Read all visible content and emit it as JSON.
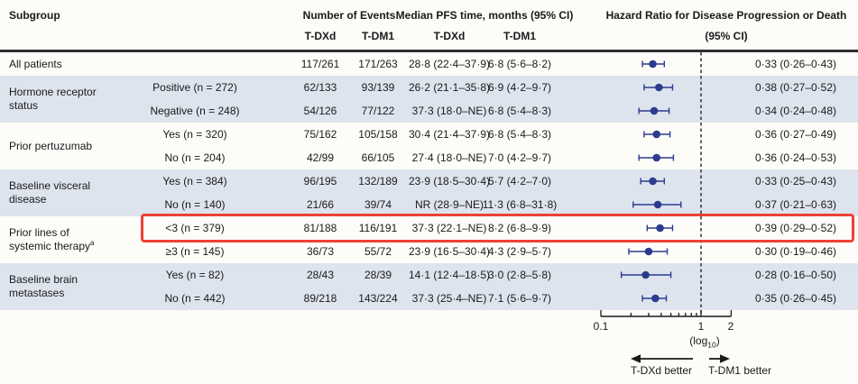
{
  "header": {
    "col_subgroup": "Subgroup",
    "col_events": "Number of Events",
    "col_median": "Median PFS time, months (95% CI)",
    "col_hr_line1": "Hazard Ratio for Disease Progression or Death",
    "col_hr_line2": "(95% CI)",
    "sub_tdxd_events": "T-DXd",
    "sub_tdm1_events": "T-DM1",
    "sub_tdxd_median": "T-DXd",
    "sub_tdm1_median": "T-DM1"
  },
  "groups": [
    {
      "lines": [
        "All patients"
      ],
      "sup": "",
      "start_row": 0,
      "span": 1
    },
    {
      "lines": [
        "Hormone receptor",
        "status"
      ],
      "sup": "",
      "start_row": 1,
      "span": 2
    },
    {
      "lines": [
        "Prior pertuzumab"
      ],
      "sup": "",
      "start_row": 3,
      "span": 2
    },
    {
      "lines": [
        "Baseline visceral",
        "disease"
      ],
      "sup": "",
      "start_row": 5,
      "span": 2
    },
    {
      "lines": [
        "Prior lines of",
        "systemic therapy"
      ],
      "sup": "a",
      "start_row": 7,
      "span": 2
    },
    {
      "lines": [
        "Baseline brain",
        "metastases"
      ],
      "sup": "",
      "start_row": 9,
      "span": 2
    }
  ],
  "rows": [
    {
      "sublabel": "",
      "ev_tdxd": "117/261",
      "ev_tdm1": "171/263",
      "med_tdxd": "28·8 (22·4–37·9)",
      "med_tdm1": "6·8 (5·6–8·2)",
      "hr_text": "0·33 (0·26–0·43)",
      "shaded": false,
      "highlight": false
    },
    {
      "sublabel": "Positive (n = 272)",
      "ev_tdxd": "62/133",
      "ev_tdm1": "93/139",
      "med_tdxd": "26·2 (21·1–35·8)",
      "med_tdm1": "6·9 (4·2–9·7)",
      "hr_text": "0·38 (0·27–0·52)",
      "shaded": true,
      "highlight": false
    },
    {
      "sublabel": "Negative (n = 248)",
      "ev_tdxd": "54/126",
      "ev_tdm1": "77/122",
      "med_tdxd": "37·3 (18·0–NE)",
      "med_tdm1": "6·8 (5·4–8·3)",
      "hr_text": "0·34 (0·24–0·48)",
      "shaded": true,
      "highlight": false
    },
    {
      "sublabel": "Yes (n = 320)",
      "ev_tdxd": "75/162",
      "ev_tdm1": "105/158",
      "med_tdxd": "30·4 (21·4–37·9)",
      "med_tdm1": "6·8 (5·4–8·3)",
      "hr_text": "0·36 (0·27–0·49)",
      "shaded": false,
      "highlight": false
    },
    {
      "sublabel": "No (n = 204)",
      "ev_tdxd": "42/99",
      "ev_tdm1": "66/105",
      "med_tdxd": "27·4 (18·0–NE)",
      "med_tdm1": "7·0 (4·2–9·7)",
      "hr_text": "0·36 (0·24–0·53)",
      "shaded": false,
      "highlight": false
    },
    {
      "sublabel": "Yes (n = 384)",
      "ev_tdxd": "96/195",
      "ev_tdm1": "132/189",
      "med_tdxd": "23·9 (18·5–30·4)",
      "med_tdm1": "5·7 (4·2–7·0)",
      "hr_text": "0·33 (0·25–0·43)",
      "shaded": true,
      "highlight": false
    },
    {
      "sublabel": "No (n = 140)",
      "ev_tdxd": "21/66",
      "ev_tdm1": "39/74",
      "med_tdxd": "NR (28·9–NE)",
      "med_tdm1": "11·3 (6·8–31·8)",
      "hr_text": "0·37 (0·21–0·63)",
      "shaded": true,
      "highlight": false
    },
    {
      "sublabel": "<3 (n = 379)",
      "ev_tdxd": "81/188",
      "ev_tdm1": "116/191",
      "med_tdxd": "37·3 (22·1–NE)",
      "med_tdm1": "8·2 (6·8–9·9)",
      "hr_text": "0·39 (0·29–0·52)",
      "shaded": false,
      "highlight": true
    },
    {
      "sublabel": "≥3 (n = 145)",
      "ev_tdxd": "36/73",
      "ev_tdm1": "55/72",
      "med_tdxd": "23·9 (16·5–30·4)",
      "med_tdm1": "4·3 (2·9–5·7)",
      "hr_text": "0·30 (0·19–0·46)",
      "shaded": false,
      "highlight": false
    },
    {
      "sublabel": "Yes (n = 82)",
      "ev_tdxd": "28/43",
      "ev_tdm1": "28/39",
      "med_tdxd": "14·1 (12·4–18·5)",
      "med_tdm1": "3·0 (2·8–5·8)",
      "hr_text": "0·28 (0·16–0·50)",
      "shaded": true,
      "highlight": false
    },
    {
      "sublabel": "No (n = 442)",
      "ev_tdxd": "89/218",
      "ev_tdm1": "143/224",
      "med_tdxd": "37·3 (25·4–NE)",
      "med_tdm1": "7·1 (5·6–9·7)",
      "hr_text": "0·35 (0·26–0·45)",
      "shaded": true,
      "highlight": false
    }
  ],
  "chart_data": {
    "type": "forest",
    "x_scale": "log10",
    "x_range": [
      0.1,
      2
    ],
    "reference_line": 1.0,
    "axis_ticks": [
      0.1,
      0.2,
      0.3,
      0.4,
      0.5,
      0.6,
      0.7,
      0.8,
      0.9,
      1,
      2
    ],
    "axis_tick_labels": [
      "0.1",
      "1",
      "2"
    ],
    "axis_note_pre": "(log",
    "axis_note_sub": "10",
    "axis_note_post": ")",
    "x_axis_left_label": "T-DXd better",
    "x_axis_right_label": "T-DM1 better",
    "series": [
      {
        "subgroup": "All patients",
        "hr": 0.33,
        "ci": [
          0.26,
          0.43
        ]
      },
      {
        "subgroup": "Hormone receptor status: Positive",
        "hr": 0.38,
        "ci": [
          0.27,
          0.52
        ]
      },
      {
        "subgroup": "Hormone receptor status: Negative",
        "hr": 0.34,
        "ci": [
          0.24,
          0.48
        ]
      },
      {
        "subgroup": "Prior pertuzumab: Yes",
        "hr": 0.36,
        "ci": [
          0.27,
          0.49
        ]
      },
      {
        "subgroup": "Prior pertuzumab: No",
        "hr": 0.36,
        "ci": [
          0.24,
          0.53
        ]
      },
      {
        "subgroup": "Baseline visceral disease: Yes",
        "hr": 0.33,
        "ci": [
          0.25,
          0.43
        ]
      },
      {
        "subgroup": "Baseline visceral disease: No",
        "hr": 0.37,
        "ci": [
          0.21,
          0.63
        ]
      },
      {
        "subgroup": "Prior lines of systemic therapy: <3",
        "hr": 0.39,
        "ci": [
          0.29,
          0.52
        ]
      },
      {
        "subgroup": "Prior lines of systemic therapy: ≥3",
        "hr": 0.3,
        "ci": [
          0.19,
          0.46
        ]
      },
      {
        "subgroup": "Baseline brain metastases: Yes",
        "hr": 0.28,
        "ci": [
          0.16,
          0.5
        ]
      },
      {
        "subgroup": "Baseline brain metastases: No",
        "hr": 0.35,
        "ci": [
          0.26,
          0.45
        ]
      }
    ]
  },
  "colors": {
    "row_shade": "#dde4ee",
    "marker": "#2d3b8e",
    "highlight_box": "#ee4036",
    "dashed_line": "#3d3d3d",
    "axis": "#1a1a1a",
    "text": "#1a1a1a"
  }
}
